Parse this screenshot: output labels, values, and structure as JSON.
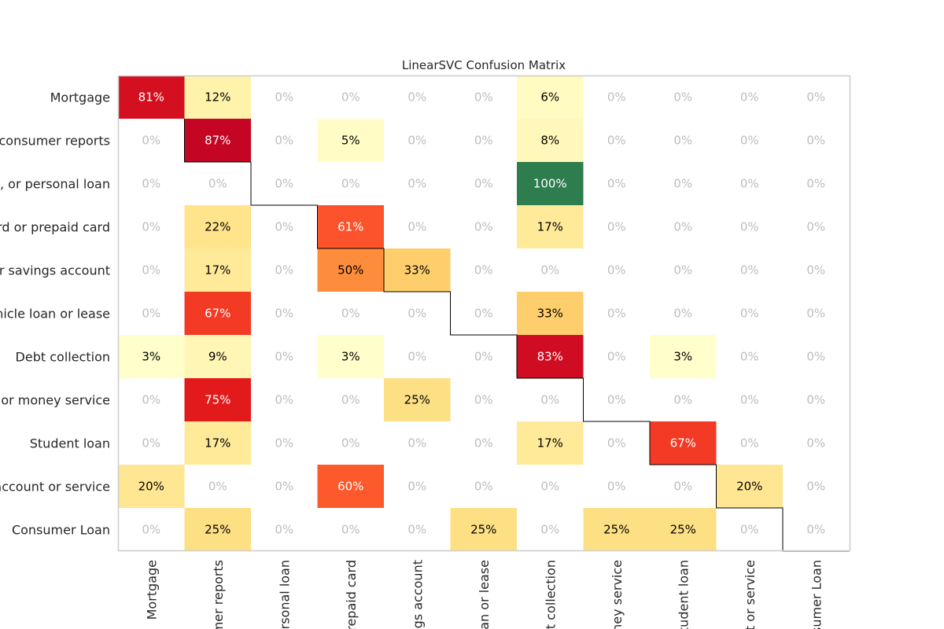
{
  "chart_data": {
    "type": "heatmap",
    "title": "LinearSVC Confusion Matrix",
    "row_labels": [
      "Mortgage",
      "al consumer reports",
      "an, or personal loan",
      "ard or prepaid card",
      "or savings account",
      "ehicle loan or lease",
      "Debt collection",
      "y, or money service",
      "Student loan",
      "t account or service",
      "Consumer Loan"
    ],
    "col_labels": [
      "Mortgage",
      "umer reports",
      "ersonal loan",
      "repaid card",
      "ngs account",
      "oan or lease",
      "ebt collection",
      "oney service",
      "Student loan",
      "nt or service",
      "sumer Loan"
    ],
    "values": [
      [
        81,
        12,
        0,
        0,
        0,
        0,
        6,
        0,
        0,
        0,
        0
      ],
      [
        0,
        87,
        0,
        5,
        0,
        0,
        8,
        0,
        0,
        0,
        0
      ],
      [
        0,
        0,
        0,
        0,
        0,
        0,
        100,
        0,
        0,
        0,
        0
      ],
      [
        0,
        22,
        0,
        61,
        0,
        0,
        17,
        0,
        0,
        0,
        0
      ],
      [
        0,
        17,
        0,
        50,
        33,
        0,
        0,
        0,
        0,
        0,
        0
      ],
      [
        0,
        67,
        0,
        0,
        0,
        0,
        33,
        0,
        0,
        0,
        0
      ],
      [
        3,
        9,
        0,
        3,
        0,
        0,
        83,
        0,
        3,
        0,
        0
      ],
      [
        0,
        75,
        0,
        0,
        25,
        0,
        0,
        0,
        0,
        0,
        0
      ],
      [
        0,
        17,
        0,
        0,
        0,
        0,
        17,
        0,
        67,
        0,
        0
      ],
      [
        20,
        0,
        0,
        60,
        0,
        0,
        0,
        0,
        0,
        20,
        0
      ],
      [
        0,
        25,
        0,
        0,
        0,
        25,
        0,
        25,
        25,
        0,
        0
      ]
    ],
    "value_suffix": "%",
    "perfect_color": "#2e7d4f",
    "zero_text_color": "#bdbdbd",
    "grid": false
  }
}
